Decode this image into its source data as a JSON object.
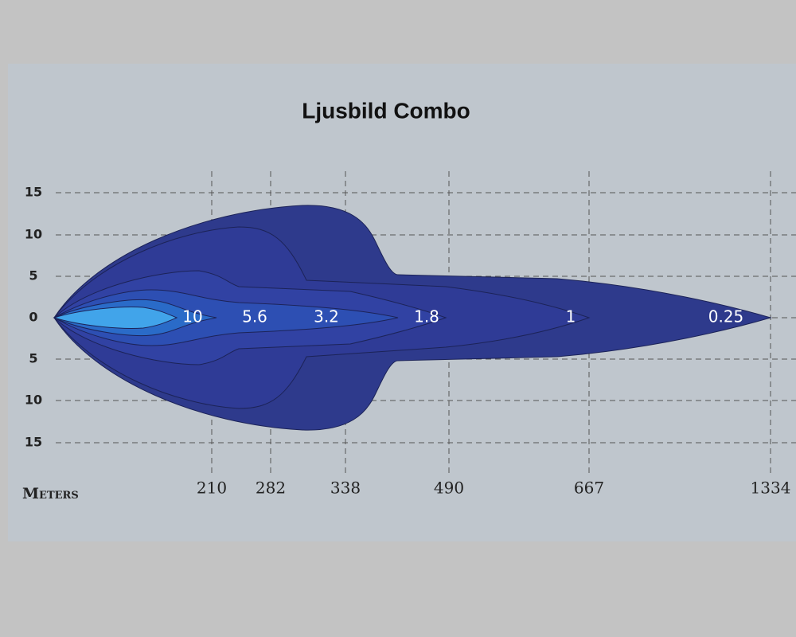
{
  "title": "Ljusbild Combo",
  "y_labels": [
    "15",
    "10",
    "5",
    "0",
    "5",
    "10",
    "15"
  ],
  "x_axis_label": "Meters",
  "x_labels": [
    "210",
    "282",
    "338",
    "490",
    "667",
    "1334"
  ],
  "zone_labels": [
    "10",
    "5.6",
    "3.2",
    "1.8",
    "1",
    "0.25"
  ]
}
